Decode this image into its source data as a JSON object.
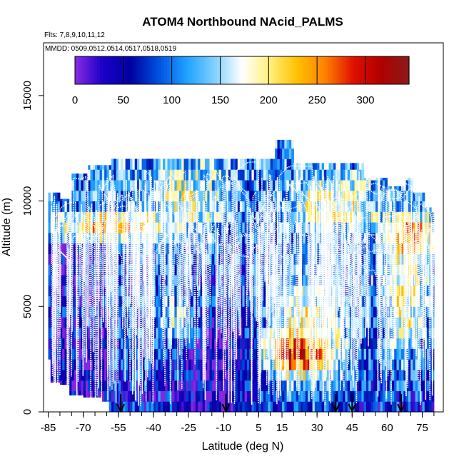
{
  "chart_data": {
    "type": "heatmap",
    "title": "ATOM4 Northbound NAcid_PALMS",
    "subtitle_flights": "Flts: 7,8,9,10,11,12",
    "subtitle_dates": "MMDD: 0509,0512,0514,0517,0518,0519",
    "xlabel": "Latitude (deg N)",
    "ylabel": "Altitude (m)",
    "xlim": [
      -87,
      84
    ],
    "ylim": [
      0,
      17500
    ],
    "x_ticks": [
      "-85",
      "-70",
      "-55",
      "-40",
      "-25",
      "-10",
      "5",
      "15",
      "30",
      "45",
      "60",
      "75"
    ],
    "y_ticks": [
      "0",
      "5000",
      "10000",
      "15000"
    ],
    "colorbar": {
      "range": [
        0,
        345
      ],
      "ticks": [
        "0",
        "50",
        "100",
        "150",
        "200",
        "250",
        "300"
      ],
      "colors": [
        "#8a2be2",
        "#1a00c8",
        "#0000a0",
        "#0050e0",
        "#1ea0ff",
        "#7fd0ff",
        "#ffffff",
        "#fff07a",
        "#ffc000",
        "#ff8000",
        "#e01000",
        "#b00000",
        "#8b1a1a"
      ]
    },
    "profile_lines": [
      "white"
    ],
    "profile_line_count": 6,
    "profile_arrows_lat": [
      -54,
      -9,
      38,
      45,
      66
    ],
    "region_values": [
      {
        "lat_range": [
          -87,
          -60
        ],
        "alt_range": [
          0,
          8000
        ],
        "value": 20
      },
      {
        "lat_range": [
          -87,
          -40
        ],
        "alt_range": [
          8000,
          9500
        ],
        "value": 120
      },
      {
        "lat_range": [
          -70,
          -55
        ],
        "alt_range": [
          8000,
          9500
        ],
        "value": 210
      },
      {
        "lat_range": [
          -60,
          -10
        ],
        "alt_range": [
          0,
          10500
        ],
        "value": 45
      },
      {
        "lat_range": [
          -25,
          -15
        ],
        "alt_range": [
          8000,
          9000
        ],
        "value": 240
      },
      {
        "lat_range": [
          5,
          45
        ],
        "alt_range": [
          1000,
          6000
        ],
        "value": 230
      },
      {
        "lat_range": [
          20,
          40
        ],
        "alt_range": [
          2500,
          3500
        ],
        "value": 270
      },
      {
        "lat_range": [
          -10,
          60
        ],
        "alt_range": [
          9000,
          12000
        ],
        "value": 120
      },
      {
        "lat_range": [
          60,
          80
        ],
        "alt_range": [
          5000,
          8500
        ],
        "value": 250
      }
    ]
  }
}
